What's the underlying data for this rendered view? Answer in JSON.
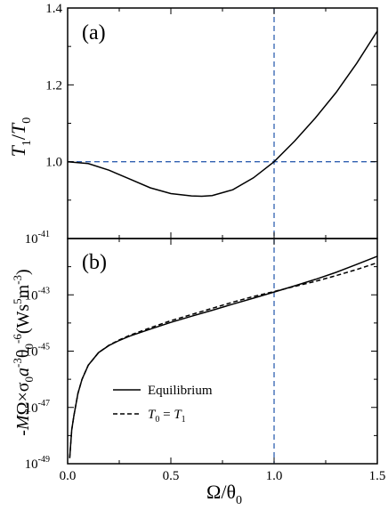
{
  "chart_data": [
    {
      "type": "line",
      "panel_label": "(a)",
      "ylabel": {
        "base": "T",
        "sub1": "1",
        "slash": "/",
        "base2": "T",
        "sub2": "0"
      },
      "xlim": [
        0,
        1.5
      ],
      "ylim": [
        0.8,
        1.4
      ],
      "ytick_labels": [
        "1.0",
        "1.2",
        "1.4"
      ],
      "ytick_values": [
        1.0,
        1.2,
        1.4
      ],
      "reference_lines": {
        "horizontal_y": 1.0,
        "vertical_x": 1.0,
        "color": "#3060b0"
      },
      "series": [
        {
          "color": "#000000",
          "dash": "solid",
          "x": [
            0.0,
            0.1,
            0.2,
            0.3,
            0.4,
            0.5,
            0.6,
            0.65,
            0.7,
            0.8,
            0.9,
            1.0,
            1.1,
            1.2,
            1.3,
            1.4,
            1.5
          ],
          "y": [
            1.0,
            0.995,
            0.978,
            0.955,
            0.932,
            0.917,
            0.911,
            0.91,
            0.912,
            0.927,
            0.958,
            1.0,
            1.054,
            1.114,
            1.18,
            1.256,
            1.34
          ]
        }
      ]
    },
    {
      "type": "line",
      "panel_label": "(b)",
      "xlabel": {
        "omega": "Ω",
        "slash": "/",
        "theta": "θ",
        "sub": "0"
      },
      "ylabel_text": "-MΩ×σ₀a⁻³θ₀⁻⁶(Ws⁵m⁻³)",
      "xlim": [
        0,
        1.5
      ],
      "ylim": [
        -49,
        -41
      ],
      "yscale": "log",
      "xtick_labels": [
        "0.0",
        "0.5",
        "1.0",
        "1.5"
      ],
      "xtick_values": [
        0.0,
        0.5,
        1.0,
        1.5
      ],
      "ytick_labels": [
        {
          "base": "10",
          "exp": "-41"
        },
        {
          "base": "10",
          "exp": "-43"
        },
        {
          "base": "10",
          "exp": "-45"
        },
        {
          "base": "10",
          "exp": "-47"
        },
        {
          "base": "10",
          "exp": "-49"
        }
      ],
      "ytick_exponents": [
        -41,
        -43,
        -45,
        -47,
        -49
      ],
      "reference_lines": {
        "vertical_x": 1.0,
        "color": "#3060b0"
      },
      "legend_position": "center-left",
      "series": [
        {
          "name": "Equilibrium",
          "color": "#000000",
          "dash": "solid",
          "x": [
            0.01,
            0.02,
            0.03,
            0.05,
            0.07,
            0.1,
            0.15,
            0.2,
            0.25,
            0.3,
            0.4,
            0.5,
            0.6,
            0.7,
            0.8,
            0.9,
            1.0,
            1.1,
            1.2,
            1.3,
            1.4,
            1.5
          ],
          "log10_y": [
            -48.8,
            -47.8,
            -47.3,
            -46.5,
            -46.0,
            -45.5,
            -45.05,
            -44.8,
            -44.62,
            -44.47,
            -44.22,
            -43.98,
            -43.76,
            -43.55,
            -43.33,
            -43.12,
            -42.9,
            -42.68,
            -42.45,
            -42.2,
            -41.92,
            -41.63
          ]
        },
        {
          "name": "T₀ = T₁",
          "color": "#000000",
          "dash": "dashed",
          "x": [
            0.01,
            0.02,
            0.03,
            0.05,
            0.07,
            0.1,
            0.15,
            0.2,
            0.25,
            0.3,
            0.4,
            0.5,
            0.6,
            0.7,
            0.8,
            0.9,
            1.0,
            1.1,
            1.2,
            1.3,
            1.4,
            1.5
          ],
          "log10_y": [
            -48.8,
            -47.8,
            -47.3,
            -46.5,
            -46.0,
            -45.5,
            -45.05,
            -44.79,
            -44.6,
            -44.44,
            -44.17,
            -43.92,
            -43.7,
            -43.48,
            -43.26,
            -43.06,
            -42.88,
            -42.7,
            -42.52,
            -42.32,
            -42.1,
            -41.86
          ]
        }
      ],
      "legend_labels": {
        "equilibrium": "Equilibrium",
        "t0_base": "T",
        "t0_sub": "0",
        "equals": " = ",
        "t1_base": "T",
        "t1_sub": "1"
      }
    }
  ]
}
